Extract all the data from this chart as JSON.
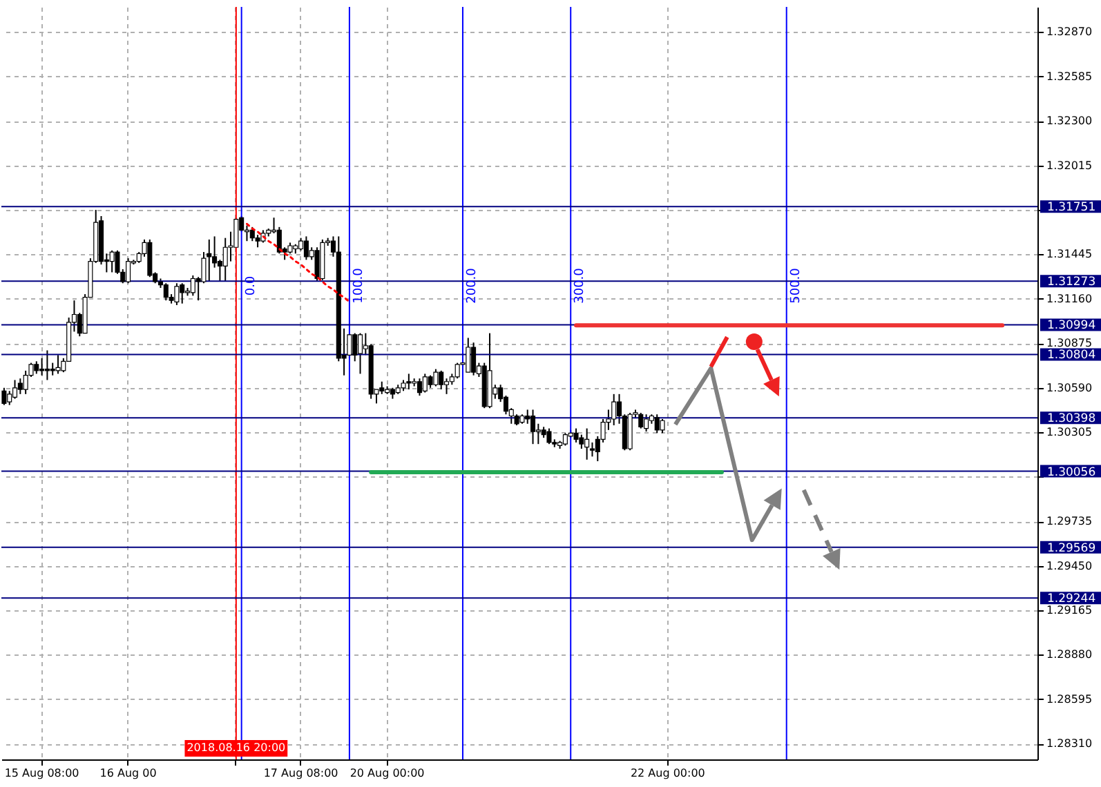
{
  "chart_data": {
    "type": "candlestick",
    "categories": [
      null,
      null,
      null,
      null,
      null,
      null,
      null,
      "15 Aug 08:00",
      null,
      null,
      null,
      null,
      null,
      null,
      null,
      null,
      null,
      null,
      null,
      null,
      null,
      null,
      null,
      "16 Aug 00",
      null,
      null,
      null,
      null,
      null,
      null,
      null,
      null,
      null,
      null,
      null,
      null,
      null,
      null,
      null,
      null,
      null,
      null,
      null,
      "2018.08.16 20:00",
      null,
      null,
      null,
      null,
      null,
      null,
      null,
      null,
      null,
      null,
      null,
      "17 Aug 08:00",
      null,
      null,
      null,
      null,
      null,
      null,
      null,
      null,
      null,
      null,
      null,
      null,
      null,
      null,
      null,
      "20 Aug 00:00",
      null,
      null,
      null,
      null,
      null,
      null,
      null,
      null,
      null,
      null,
      null,
      null,
      null,
      null,
      null,
      null,
      null,
      null,
      null,
      null,
      null,
      null,
      null,
      null,
      null,
      null,
      null,
      null,
      null,
      null,
      null,
      null,
      null,
      null,
      null,
      null,
      null,
      null,
      null,
      null,
      null,
      null,
      null,
      null,
      null,
      null,
      null,
      null,
      null,
      null,
      null,
      "22 Aug 00:00",
      null,
      null,
      null,
      null,
      null,
      null,
      null,
      null,
      null,
      null,
      null,
      null,
      null,
      null,
      null,
      null,
      null,
      null,
      null,
      null,
      null,
      null,
      null,
      null,
      null,
      null,
      null,
      null,
      null,
      null,
      null,
      null,
      null,
      null,
      null,
      null,
      null,
      null,
      null,
      null,
      null,
      null,
      null,
      null,
      null,
      null,
      null,
      null,
      null,
      null,
      null,
      null,
      null,
      null,
      null,
      null,
      null,
      null,
      null,
      null,
      null,
      null,
      null,
      null,
      null,
      null,
      null,
      null
    ],
    "ohlc": [
      [
        1.3057,
        1.3059,
        1.3048,
        1.3049
      ],
      [
        1.305,
        1.3057,
        1.3048,
        1.3055
      ],
      [
        1.3053,
        1.3064,
        1.3052,
        1.3059
      ],
      [
        1.3062,
        1.3065,
        1.3055,
        1.3058
      ],
      [
        1.3058,
        1.307,
        1.3055,
        1.3067
      ],
      [
        1.3067,
        1.3075,
        1.3066,
        1.3074
      ],
      [
        1.3074,
        1.3076,
        1.3068,
        1.307
      ],
      [
        1.3071,
        1.3078,
        1.3067,
        1.307
      ],
      [
        1.3071,
        1.3083,
        1.3064,
        1.307
      ],
      [
        1.3071,
        1.3075,
        1.3067,
        1.307
      ],
      [
        1.307,
        1.308,
        1.3068,
        1.3072
      ],
      [
        1.307,
        1.3078,
        1.3069,
        1.3076
      ],
      [
        1.3076,
        1.3104,
        1.3076,
        1.3101
      ],
      [
        1.3101,
        1.3115,
        1.3095,
        1.3106
      ],
      [
        1.3106,
        1.3107,
        1.3092,
        1.3094
      ],
      [
        1.3094,
        1.3119,
        1.3094,
        1.3117
      ],
      [
        1.3117,
        1.3142,
        1.3117,
        1.314
      ],
      [
        1.314,
        1.3173,
        1.3139,
        1.3165
      ],
      [
        1.3166,
        1.3169,
        1.3138,
        1.314
      ],
      [
        1.3141,
        1.3145,
        1.3133,
        1.314
      ],
      [
        1.314,
        1.3147,
        1.3133,
        1.3146
      ],
      [
        1.3146,
        1.3147,
        1.3132,
        1.3133
      ],
      [
        1.3133,
        1.3135,
        1.3126,
        1.3127
      ],
      [
        1.3127,
        1.3142,
        1.3126,
        1.314
      ],
      [
        1.3139,
        1.3141,
        1.3138,
        1.314
      ],
      [
        1.314,
        1.3146,
        1.3139,
        1.3145
      ],
      [
        1.3145,
        1.3154,
        1.3143,
        1.3152
      ],
      [
        1.3152,
        1.3154,
        1.313,
        1.3131
      ],
      [
        1.3132,
        1.3133,
        1.3126,
        1.3127
      ],
      [
        1.3127,
        1.3129,
        1.3123,
        1.3125
      ],
      [
        1.3125,
        1.3126,
        1.3115,
        1.3117
      ],
      [
        1.3117,
        1.3119,
        1.3113,
        1.3115
      ],
      [
        1.3114,
        1.3126,
        1.3112,
        1.3124
      ],
      [
        1.3125,
        1.3126,
        1.3113,
        1.312
      ],
      [
        1.312,
        1.3123,
        1.3118,
        1.3121
      ],
      [
        1.312,
        1.3131,
        1.3118,
        1.3129
      ],
      [
        1.3129,
        1.313,
        1.3115,
        1.3127
      ],
      [
        1.3127,
        1.3146,
        1.3126,
        1.3142
      ],
      [
        1.3145,
        1.3154,
        1.3127,
        1.3143
      ],
      [
        1.3143,
        1.3156,
        1.3136,
        1.3139
      ],
      [
        1.314,
        1.3141,
        1.3127,
        1.3137
      ],
      [
        1.3137,
        1.3155,
        1.3127,
        1.3149
      ],
      [
        1.3149,
        1.3159,
        1.314,
        1.315
      ],
      [
        1.3149,
        1.3168,
        1.3149,
        1.3167
      ],
      [
        1.3168,
        1.3169,
        1.3159,
        1.316
      ],
      [
        1.3159,
        1.3163,
        1.3153,
        1.316
      ],
      [
        1.316,
        1.3162,
        1.3153,
        1.3155
      ],
      [
        1.3155,
        1.3157,
        1.3149,
        1.3153
      ],
      [
        1.3153,
        1.316,
        1.3152,
        1.3158
      ],
      [
        1.3158,
        1.3161,
        1.3156,
        1.316
      ],
      [
        1.3159,
        1.3168,
        1.3158,
        1.316
      ],
      [
        1.316,
        1.3162,
        1.3145,
        1.3146
      ],
      [
        1.3148,
        1.3149,
        1.3141,
        1.3146
      ],
      [
        1.3146,
        1.3152,
        1.3145,
        1.315
      ],
      [
        1.3148,
        1.3151,
        1.3145,
        1.315
      ],
      [
        1.3148,
        1.3155,
        1.3147,
        1.3153
      ],
      [
        1.3153,
        1.3156,
        1.3141,
        1.3143
      ],
      [
        1.3143,
        1.3149,
        1.3141,
        1.3147
      ],
      [
        1.3147,
        1.3149,
        1.3127,
        1.3129
      ],
      [
        1.3129,
        1.3154,
        1.3128,
        1.3152
      ],
      [
        1.3152,
        1.3155,
        1.315,
        1.3153
      ],
      [
        1.3153,
        1.3156,
        1.3143,
        1.3146
      ],
      [
        1.3146,
        1.3156,
        1.3076,
        1.3078
      ],
      [
        1.308,
        1.3097,
        1.3067,
        1.3078
      ],
      [
        1.308,
        1.3094,
        1.3078,
        1.3093
      ],
      [
        1.3093,
        1.3094,
        1.3076,
        1.308
      ],
      [
        1.3081,
        1.3094,
        1.3068,
        1.3093
      ],
      [
        1.3084,
        1.3094,
        1.308,
        1.3086
      ],
      [
        1.3086,
        1.3087,
        1.3052,
        1.3055
      ],
      [
        1.3055,
        1.3058,
        1.3049,
        1.3058
      ],
      [
        1.3059,
        1.3063,
        1.3055,
        1.3057
      ],
      [
        1.3056,
        1.306,
        1.3055,
        1.3058
      ],
      [
        1.3058,
        1.3059,
        1.3052,
        1.3055
      ],
      [
        1.3056,
        1.3061,
        1.3055,
        1.3059
      ],
      [
        1.3059,
        1.3064,
        1.3057,
        1.3062
      ],
      [
        1.3063,
        1.3068,
        1.3058,
        1.3062
      ],
      [
        1.3062,
        1.3065,
        1.306,
        1.3063
      ],
      [
        1.3063,
        1.3065,
        1.3054,
        1.3056
      ],
      [
        1.3057,
        1.3068,
        1.3056,
        1.3066
      ],
      [
        1.3066,
        1.3067,
        1.3059,
        1.3061
      ],
      [
        1.3061,
        1.3071,
        1.306,
        1.3069
      ],
      [
        1.3069,
        1.307,
        1.3058,
        1.3061
      ],
      [
        1.3061,
        1.3065,
        1.3055,
        1.3063
      ],
      [
        1.3063,
        1.3068,
        1.3061,
        1.3066
      ],
      [
        1.3066,
        1.3075,
        1.3065,
        1.3074
      ],
      [
        1.3074,
        1.3077,
        1.3072,
        1.3075
      ],
      [
        1.3069,
        1.3091,
        1.3069,
        1.3085
      ],
      [
        1.3085,
        1.3088,
        1.3067,
        1.3069
      ],
      [
        1.3068,
        1.3075,
        1.3066,
        1.3073
      ],
      [
        1.3073,
        1.3075,
        1.3046,
        1.3047
      ],
      [
        1.3047,
        1.3094,
        1.3046,
        1.307
      ],
      [
        1.3055,
        1.3061,
        1.3052,
        1.3059
      ],
      [
        1.3059,
        1.3061,
        1.305,
        1.3052
      ],
      [
        1.3053,
        1.3054,
        1.3042,
        1.3044
      ],
      [
        1.3041,
        1.3046,
        1.3036,
        1.3045
      ],
      [
        1.3041,
        1.3042,
        1.3035,
        1.3036
      ],
      [
        1.3037,
        1.3042,
        1.3036,
        1.3041
      ],
      [
        1.3041,
        1.3045,
        1.3036,
        1.3039
      ],
      [
        1.3041,
        1.3045,
        1.3023,
        1.3031
      ],
      [
        1.3031,
        1.3036,
        1.3023,
        1.3032
      ],
      [
        1.3032,
        1.3034,
        1.3027,
        1.3029
      ],
      [
        1.3031,
        1.3033,
        1.3023,
        1.3024
      ],
      [
        1.3024,
        1.3026,
        1.3021,
        1.3023
      ],
      [
        1.3022,
        1.3025,
        1.302,
        1.3024
      ],
      [
        1.3023,
        1.303,
        1.3022,
        1.3029
      ],
      [
        1.3028,
        1.3032,
        1.3027,
        1.303
      ],
      [
        1.303,
        1.3033,
        1.3024,
        1.3026
      ],
      [
        1.3027,
        1.3029,
        1.302,
        1.3023
      ],
      [
        1.3021,
        1.3033,
        1.3013,
        1.3026
      ],
      [
        1.302,
        1.3024,
        1.3015,
        1.3019
      ],
      [
        1.3026,
        1.3028,
        1.3012,
        1.3018
      ],
      [
        1.3026,
        1.3039,
        1.3024,
        1.3037
      ],
      [
        1.3037,
        1.3045,
        1.3032,
        1.3039
      ],
      [
        1.3039,
        1.3055,
        1.3035,
        1.305
      ],
      [
        1.305,
        1.3055,
        1.3036,
        1.3041
      ],
      [
        1.3041,
        1.3042,
        1.3019,
        1.302
      ],
      [
        1.302,
        1.3043,
        1.3019,
        1.3042
      ],
      [
        1.3042,
        1.3045,
        1.304,
        1.3043
      ],
      [
        1.3042,
        1.3043,
        1.3033,
        1.3034
      ],
      [
        1.3033,
        1.3042,
        1.3031,
        1.3039
      ],
      [
        1.3038,
        1.3042,
        1.3036,
        1.3041
      ],
      [
        1.304,
        1.3042,
        1.303,
        1.3032
      ],
      [
        1.3032,
        1.3039,
        1.303,
        1.3038
      ],
      null,
      null,
      null,
      null,
      null,
      null,
      null,
      null,
      null,
      null,
      null,
      null,
      null,
      null,
      null,
      null,
      null,
      null,
      null,
      null,
      null,
      null,
      null,
      null,
      null,
      null,
      null,
      null,
      null,
      null,
      null,
      null,
      null,
      null,
      null,
      null,
      null,
      null,
      null,
      null,
      null,
      null,
      null,
      null,
      null,
      null,
      null,
      null,
      null,
      null,
      null,
      null,
      null,
      null,
      null,
      null,
      null,
      null,
      null,
      null,
      null,
      null,
      null,
      null,
      null,
      null,
      null,
      null,
      null
    ],
    "ylim": [
      1.2821,
      1.3303
    ],
    "yticks": [
      {
        "value": 1.2831,
        "label": "1.28310"
      },
      1.28595,
      {
        "value": 1.2888,
        "label": "1.28880"
      },
      1.29165,
      {
        "value": 1.2945,
        "label": "1.29450"
      },
      1.29735,
      {
        "value": 1.3002,
        "label": null
      },
      1.30305,
      {
        "value": 1.3059,
        "label": "1.30590"
      },
      1.30875,
      {
        "value": 1.3116,
        "label": "1.31160"
      },
      1.31445,
      {
        "value": 1.3173,
        "label": null
      },
      1.32015,
      {
        "value": 1.323,
        "label": "1.32300"
      },
      1.32585,
      {
        "value": 1.3287,
        "label": "1.32870"
      }
    ],
    "grid": true,
    "annotations": [
      "0.0",
      "100.0",
      "200.0",
      "300.0",
      "500.0"
    ],
    "ref_lines": [
      {
        "axis": "y",
        "value": 1.31751,
        "label": "1.31751",
        "color": "#000080"
      },
      {
        "axis": "y",
        "value": 1.31273,
        "label": "1.31273",
        "color": "#000080"
      },
      {
        "axis": "y",
        "value": 1.30994,
        "label": "1.30994",
        "color": "#000080"
      },
      {
        "axis": "y",
        "value": 1.30804,
        "label": "1.30804",
        "color": "#000080"
      },
      {
        "axis": "y",
        "value": 1.30398,
        "label": "1.30398",
        "color": "#000080"
      },
      {
        "axis": "y",
        "value": 1.30056,
        "label": "1.30056",
        "color": "#000080"
      },
      {
        "axis": "y",
        "value": 1.29569,
        "label": "1.29569",
        "color": "#000080"
      },
      {
        "axis": "y",
        "value": 1.29244,
        "label": "1.29244",
        "color": "#000080"
      }
    ],
    "series": [
      {
        "type": "line",
        "color": "#ff0000",
        "line_style": "dotted",
        "values": [
          null,
          null,
          null,
          null,
          null,
          null,
          null,
          null,
          null,
          null,
          null,
          null,
          null,
          null,
          null,
          null,
          null,
          null,
          null,
          null,
          null,
          null,
          null,
          null,
          null,
          null,
          null,
          null,
          null,
          null,
          null,
          null,
          null,
          null,
          null,
          null,
          null,
          null,
          null,
          null,
          null,
          null,
          null,
          null,
          null,
          1.3164,
          1.3161,
          1.3159,
          1.3156,
          1.3153,
          1.3151,
          1.3148,
          1.3145,
          1.3143,
          1.314,
          1.3138,
          1.3135,
          1.3132,
          1.313,
          1.3127,
          1.3124,
          1.3122,
          1.3119,
          1.3117,
          1.3114,
          null,
          null,
          null,
          null,
          null,
          null,
          null,
          null,
          null,
          null,
          null,
          null,
          null,
          null,
          null,
          null,
          null,
          null,
          null,
          null,
          null,
          null,
          null,
          null,
          null,
          null,
          null,
          null,
          null,
          null,
          null,
          null,
          null,
          null,
          null,
          null,
          null,
          null,
          null,
          null,
          null,
          null,
          null,
          null,
          null,
          null,
          null,
          null,
          null,
          null,
          null,
          null,
          null,
          null,
          null,
          null,
          null,
          null,
          null,
          null,
          null,
          null,
          null,
          null,
          null,
          null,
          null,
          null,
          null,
          null,
          null,
          null,
          null,
          null,
          null,
          null,
          null,
          null,
          null,
          null,
          null,
          null,
          null,
          null,
          null,
          null,
          null,
          null,
          null,
          null,
          null,
          null,
          null,
          null,
          null,
          null,
          null,
          null,
          null,
          null,
          null,
          null,
          null,
          null,
          null,
          null,
          null,
          null,
          null,
          null,
          null,
          null,
          null,
          null,
          null,
          null,
          null,
          null,
          null,
          null,
          null,
          null,
          null,
          null,
          null,
          null,
          null
        ]
      },
      {
        "type": "line",
        "color": "#ee3333",
        "line_style": "solid",
        "values": [
          null,
          null,
          null,
          null,
          null,
          null,
          null,
          null,
          null,
          null,
          null,
          null,
          null,
          null,
          null,
          null,
          null,
          null,
          null,
          null,
          null,
          null,
          null,
          null,
          null,
          null,
          null,
          null,
          null,
          null,
          null,
          null,
          null,
          null,
          null,
          null,
          null,
          null,
          null,
          null,
          null,
          null,
          null,
          null,
          null,
          null,
          null,
          null,
          null,
          null,
          null,
          null,
          null,
          null,
          null,
          null,
          null,
          null,
          null,
          null,
          null,
          null,
          null,
          null,
          null,
          null,
          null,
          null,
          null,
          null,
          null,
          null,
          null,
          null,
          null,
          null,
          null,
          null,
          null,
          null,
          null,
          null,
          null,
          null,
          null,
          null,
          null,
          null,
          null,
          null,
          null,
          null,
          null,
          null,
          null,
          null,
          null,
          null,
          null,
          null,
          null,
          null,
          null,
          null,
          null,
          null,
          1.3099,
          1.3099,
          1.3099,
          1.3099,
          1.3099,
          1.3099,
          1.3099,
          1.3099,
          1.3099,
          1.3099,
          1.3099,
          1.3099,
          1.3099,
          1.3099,
          1.3099,
          1.3099,
          1.3099,
          1.3099,
          1.3099,
          1.3099,
          1.3099,
          1.3099,
          1.3099,
          1.3099,
          1.3099,
          1.3099,
          1.3099,
          1.3099,
          1.3099,
          1.3099,
          1.3099,
          1.3099,
          1.3099,
          1.3099,
          1.3099,
          1.3099,
          1.3099,
          1.3099,
          1.3099,
          1.3099,
          1.3099,
          1.3099,
          1.3099,
          1.3099,
          1.3099,
          1.3099,
          1.3099,
          1.3099,
          1.3099,
          1.3099,
          1.3099,
          1.3099,
          1.3099,
          1.3099,
          1.3099,
          1.3099,
          1.3099,
          1.3099,
          1.3099,
          1.3099,
          1.3099,
          1.3099,
          1.3099,
          1.3099,
          1.3099,
          1.3099,
          1.3099,
          1.3099,
          1.3099,
          1.3099,
          1.3099,
          1.3099,
          1.3099,
          1.3099,
          1.3099,
          1.3099,
          1.3099,
          1.3099,
          1.3099,
          1.3099,
          null,
          null,
          null,
          null,
          null,
          null
        ]
      },
      {
        "type": "line",
        "color": "#22aa55",
        "line_style": "solid",
        "values": [
          null,
          null,
          null,
          null,
          null,
          null,
          null,
          null,
          null,
          null,
          null,
          null,
          null,
          null,
          null,
          null,
          null,
          null,
          null,
          null,
          null,
          null,
          null,
          null,
          null,
          null,
          null,
          null,
          null,
          null,
          null,
          null,
          null,
          null,
          null,
          null,
          null,
          null,
          null,
          null,
          null,
          null,
          null,
          null,
          null,
          null,
          null,
          null,
          null,
          null,
          null,
          null,
          null,
          null,
          null,
          null,
          null,
          null,
          null,
          null,
          null,
          null,
          null,
          null,
          null,
          null,
          null,
          null,
          1.3005,
          1.3005,
          1.3005,
          1.3005,
          1.3005,
          1.3005,
          1.3005,
          1.3005,
          1.3005,
          1.3005,
          1.3005,
          1.3005,
          1.3005,
          1.3005,
          1.3005,
          1.3005,
          1.3005,
          1.3005,
          1.3005,
          1.3005,
          1.3005,
          1.3005,
          1.3005,
          1.3005,
          1.3005,
          1.3005,
          1.3005,
          1.3005,
          1.3005,
          1.3005,
          1.3005,
          1.3005,
          1.3005,
          1.3005,
          1.3005,
          1.3005,
          1.3005,
          1.3005,
          1.3005,
          1.3005,
          1.3005,
          1.3005,
          1.3005,
          1.3005,
          1.3005,
          1.3005,
          1.3005,
          1.3005,
          1.3005,
          1.3005,
          1.3005,
          1.3005,
          1.3005,
          1.3005,
          1.3005,
          1.3005,
          1.3005,
          1.3005,
          1.3005,
          1.3005,
          1.3005,
          1.3005,
          1.3005,
          1.3005,
          1.3005,
          1.3005,
          null,
          null,
          null,
          null,
          null,
          null,
          null,
          null,
          null,
          null,
          null,
          null,
          null,
          null,
          null,
          null,
          null,
          null,
          null,
          null,
          null,
          null,
          null,
          null,
          null,
          null,
          null,
          null,
          null,
          null,
          null,
          null,
          null,
          null,
          null,
          null,
          null,
          null,
          null,
          null,
          null,
          null,
          null,
          null,
          null,
          null,
          null,
          null,
          null,
          null,
          null,
          null,
          null,
          null,
          null,
          null,
          null,
          null
        ]
      }
    ]
  }
}
